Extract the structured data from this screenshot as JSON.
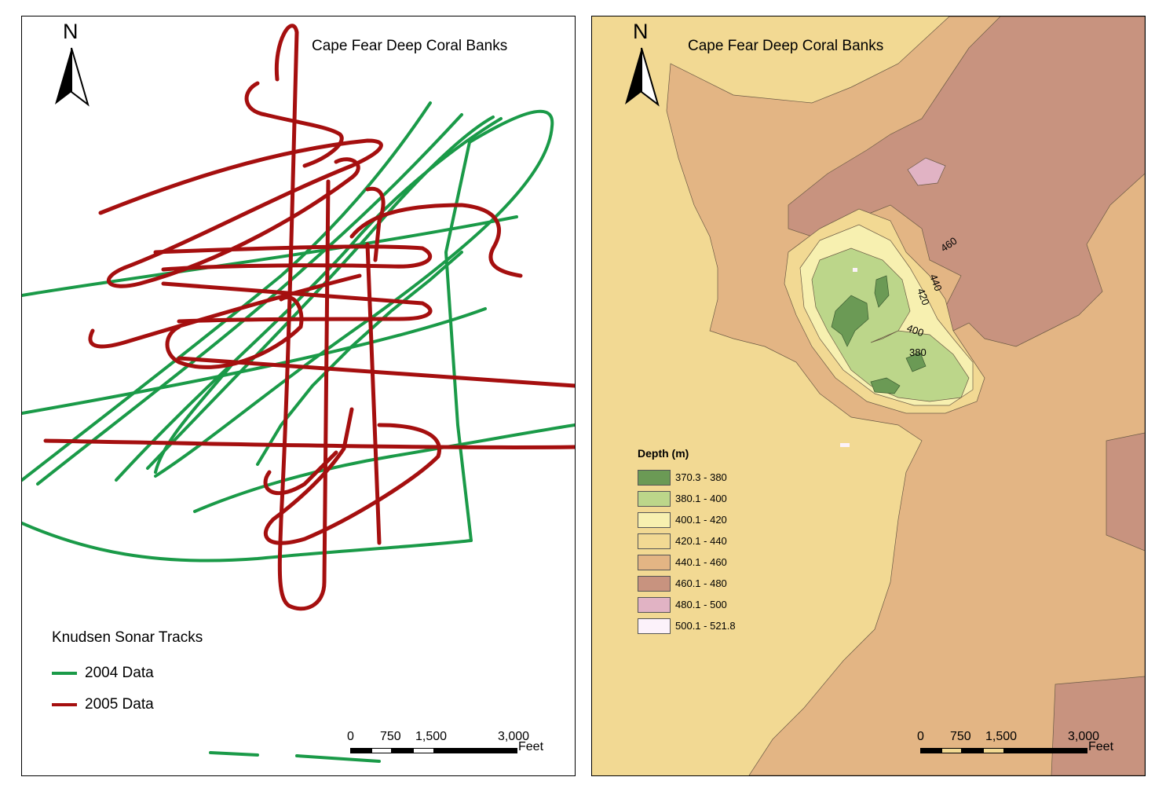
{
  "left_map": {
    "title": "Cape Fear Deep Coral Banks",
    "north_label": "N",
    "legend": {
      "title": "Knudsen Sonar Tracks",
      "items": [
        {
          "label": "2004 Data",
          "color": "#1a9a48"
        },
        {
          "label": "2005 Data",
          "color": "#a50f0f"
        }
      ]
    },
    "scale": {
      "ticks": [
        "0",
        "750",
        "1,500",
        "3,000"
      ],
      "unit": "Feet"
    }
  },
  "right_map": {
    "title": "Cape Fear Deep Coral Banks",
    "north_label": "N",
    "legend": {
      "title": "Depth (m)",
      "classes": [
        {
          "label": "370.3 - 380",
          "color": "#6b9a55"
        },
        {
          "label": "380.1 - 400",
          "color": "#bcd68a"
        },
        {
          "label": "400.1 - 420",
          "color": "#f7f0b0"
        },
        {
          "label": "420.1 - 440",
          "color": "#f2d993"
        },
        {
          "label": "440.1 - 460",
          "color": "#e3b584"
        },
        {
          "label": "460.1 - 480",
          "color": "#c8937f"
        },
        {
          "label": "480.1 - 500",
          "color": "#e1b3c4"
        },
        {
          "label": "500.1 - 521.8",
          "color": "#fcf2fa"
        }
      ]
    },
    "contour_labels": [
      "460",
      "440",
      "420",
      "400",
      "380"
    ],
    "scale": {
      "ticks": [
        "0",
        "750",
        "1,500",
        "3,000"
      ],
      "unit": "Feet"
    }
  }
}
